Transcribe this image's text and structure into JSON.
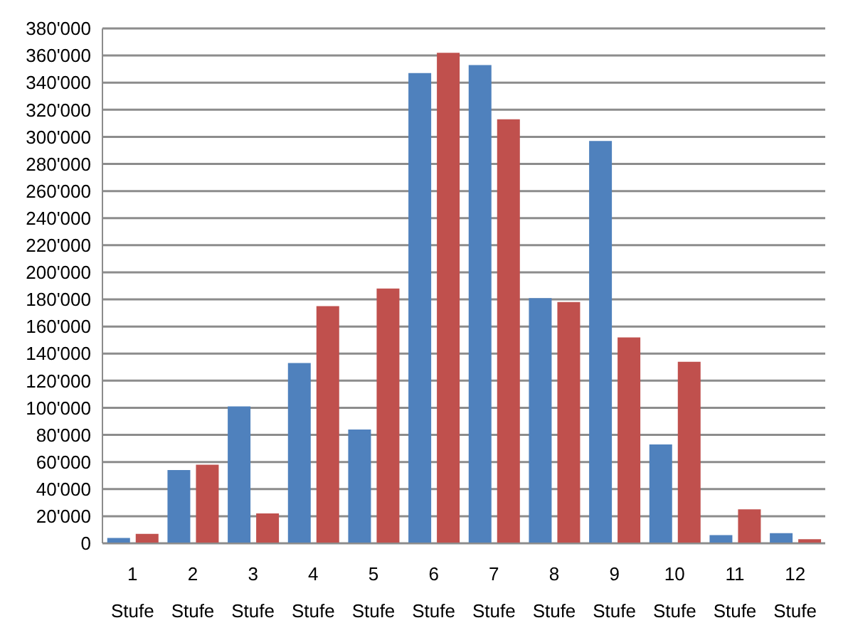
{
  "chart_data": {
    "type": "bar",
    "categories": [
      "1 Stufe",
      "2 Stufe",
      "3 Stufe",
      "4 Stufe",
      "5 Stufe",
      "6 Stufe",
      "7 Stufe",
      "8 Stufe",
      "9 Stufe",
      "10 Stufe",
      "11 Stufe",
      "12 Stufe"
    ],
    "series": [
      {
        "color": "#4f81bd",
        "values": [
          4000,
          54000,
          101000,
          133000,
          84000,
          347000,
          353000,
          181000,
          297000,
          73000,
          6000,
          7500
        ]
      },
      {
        "color": "#c0504d",
        "values": [
          7000,
          58000,
          22000,
          175000,
          188000,
          362000,
          313000,
          178000,
          152000,
          134000,
          25000,
          3000
        ]
      }
    ],
    "ylim": [
      0,
      380000
    ],
    "yticks": [
      0,
      {
        "value": 20000,
        "label": "20'000"
      },
      {
        "value": 40000,
        "label": "40'000"
      },
      {
        "value": 60000,
        "label": "60'000"
      },
      {
        "value": 80000,
        "label": "80'000"
      },
      {
        "value": 100000,
        "label": "100'000"
      },
      {
        "value": 120000,
        "label": "120'000"
      },
      {
        "value": 140000,
        "label": "140'000"
      },
      {
        "value": 160000,
        "label": "160'000"
      },
      {
        "value": 180000,
        "label": "180'000"
      },
      {
        "value": 200000,
        "label": "200'000"
      },
      {
        "value": 220000,
        "label": "220'000"
      },
      {
        "value": 240000,
        "label": "240'000"
      },
      {
        "value": 260000,
        "label": "260'000"
      },
      {
        "value": 280000,
        "label": "280'000"
      },
      {
        "value": 300000,
        "label": "300'000"
      },
      {
        "value": 320000,
        "label": "320'000"
      },
      {
        "value": 340000,
        "label": "340'000"
      },
      {
        "value": 360000,
        "label": "360'000"
      },
      {
        "value": 380000,
        "label": "380'000"
      }
    ],
    "grid": "y",
    "legend": false
  }
}
